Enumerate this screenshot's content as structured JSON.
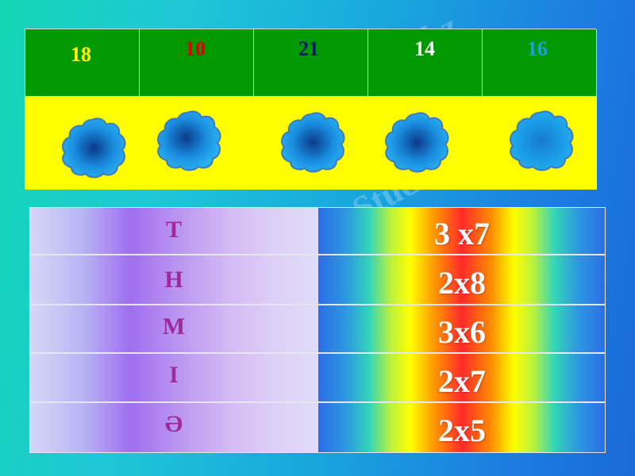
{
  "numbers": [
    {
      "value": "18",
      "color": "#ffff00"
    },
    {
      "value": "10",
      "color": "#e00000"
    },
    {
      "value": "21",
      "color": "#0a1a6a"
    },
    {
      "value": "14",
      "color": "#ffffff"
    },
    {
      "value": "16",
      "color": "#1aa0e0"
    }
  ],
  "rows": [
    {
      "letter": "Т",
      "expression": "3 x7"
    },
    {
      "letter": "Н",
      "expression": "2x8"
    },
    {
      "letter": "М",
      "expression": "3x6"
    },
    {
      "letter": "І",
      "expression": "2x7"
    },
    {
      "letter": "Ә",
      "expression": "2x5"
    }
  ],
  "watermark_text": "Stud.kz - Stud.kz",
  "colors": {
    "green": "#009a00",
    "yellow": "#ffff00",
    "flower": "#1a9ee8",
    "letter": "#a0289c"
  }
}
